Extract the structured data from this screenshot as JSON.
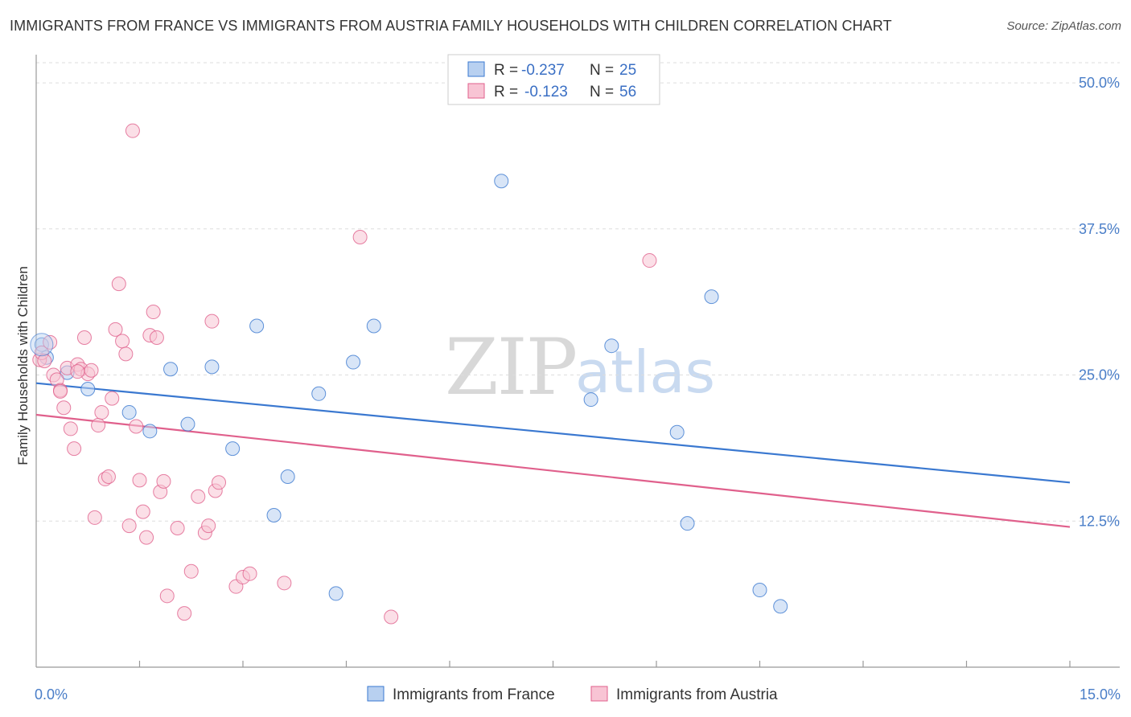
{
  "header": {
    "title": "IMMIGRANTS FROM FRANCE VS IMMIGRANTS FROM AUSTRIA FAMILY HOUSEHOLDS WITH CHILDREN CORRELATION CHART",
    "source": "Source: ZipAtlas.com"
  },
  "watermark": {
    "zip": "ZIP",
    "atlas": "atlas"
  },
  "colors": {
    "france": "#3a78d0",
    "france_fill": "#b8d0f0",
    "austria": "#e0608c",
    "austria_fill": "#f8c4d4",
    "grid": "#dddddd",
    "axis": "#999999",
    "tick_text": "#4a7ec8"
  },
  "legend": {
    "rows": [
      {
        "r_label": "R =",
        "r_value": "-0.237",
        "n_label": "N =",
        "n_value": "25"
      },
      {
        "r_label": "R =",
        "r_value": "-0.123",
        "n_label": "N =",
        "n_value": "56"
      }
    ]
  },
  "chart_data": {
    "type": "scatter",
    "title": "IMMIGRANTS FROM FRANCE VS IMMIGRANTS FROM AUSTRIA FAMILY HOUSEHOLDS WITH CHILDREN CORRELATION CHART",
    "xlabel": "",
    "ylabel": "Family Households with Children",
    "xlim": [
      0,
      15
    ],
    "ylim": [
      0,
      52
    ],
    "x_tick_labels": [
      {
        "value": 0,
        "label": "0.0%"
      },
      {
        "value": 15,
        "label": "15.0%"
      }
    ],
    "x_minor_ticks": [
      1.5,
      3,
      4.5,
      6,
      7.5,
      9,
      10.5,
      12,
      13.5,
      15
    ],
    "y_ticks": [
      {
        "value": 12.5,
        "label": "12.5%"
      },
      {
        "value": 25,
        "label": "25.0%"
      },
      {
        "value": 37.5,
        "label": "37.5%"
      },
      {
        "value": 50,
        "label": "50.0%"
      }
    ],
    "series": [
      {
        "name": "Immigrants from France",
        "r": -0.237,
        "n": 25,
        "trend": {
          "x0": 0,
          "y0": 24.3,
          "x1": 15,
          "y1": 15.8
        },
        "points": [
          [
            0.08,
            27.6
          ],
          [
            0.15,
            26.5
          ],
          [
            0.45,
            25.2
          ],
          [
            0.75,
            23.8
          ],
          [
            1.35,
            21.8
          ],
          [
            1.65,
            20.2
          ],
          [
            1.95,
            25.5
          ],
          [
            2.2,
            20.8
          ],
          [
            2.55,
            25.7
          ],
          [
            2.85,
            18.7
          ],
          [
            3.2,
            29.2
          ],
          [
            3.65,
            16.3
          ],
          [
            3.45,
            13.0
          ],
          [
            4.1,
            23.4
          ],
          [
            4.35,
            6.3
          ],
          [
            4.6,
            26.1
          ],
          [
            4.9,
            29.2
          ],
          [
            6.75,
            41.6
          ],
          [
            8.05,
            22.9
          ],
          [
            8.35,
            27.5
          ],
          [
            9.3,
            20.1
          ],
          [
            9.45,
            12.3
          ],
          [
            9.8,
            31.7
          ],
          [
            10.5,
            6.6
          ],
          [
            10.8,
            5.2
          ]
        ]
      },
      {
        "name": "Immigrants from Austria",
        "r": -0.123,
        "n": 56,
        "trend": {
          "x0": 0,
          "y0": 21.6,
          "x1": 15,
          "y1": 12.0
        },
        "points": [
          [
            0.05,
            26.3
          ],
          [
            0.08,
            26.9
          ],
          [
            0.12,
            26.2
          ],
          [
            0.2,
            27.8
          ],
          [
            0.25,
            25.0
          ],
          [
            0.3,
            24.6
          ],
          [
            0.35,
            23.7
          ],
          [
            0.4,
            22.2
          ],
          [
            0.45,
            25.6
          ],
          [
            0.5,
            20.4
          ],
          [
            0.55,
            18.7
          ],
          [
            0.6,
            25.9
          ],
          [
            0.65,
            25.5
          ],
          [
            0.7,
            28.2
          ],
          [
            0.75,
            25.1
          ],
          [
            0.8,
            25.4
          ],
          [
            0.85,
            12.8
          ],
          [
            0.9,
            20.7
          ],
          [
            0.95,
            21.8
          ],
          [
            1.0,
            16.1
          ],
          [
            1.05,
            16.3
          ],
          [
            1.1,
            23.0
          ],
          [
            1.15,
            28.9
          ],
          [
            1.2,
            32.8
          ],
          [
            1.25,
            27.9
          ],
          [
            1.3,
            26.8
          ],
          [
            1.35,
            12.1
          ],
          [
            1.4,
            45.9
          ],
          [
            1.45,
            20.6
          ],
          [
            1.5,
            16.0
          ],
          [
            1.55,
            13.3
          ],
          [
            1.6,
            11.1
          ],
          [
            1.65,
            28.4
          ],
          [
            1.7,
            30.4
          ],
          [
            1.75,
            28.2
          ],
          [
            1.8,
            15.0
          ],
          [
            1.85,
            15.9
          ],
          [
            1.9,
            6.1
          ],
          [
            2.05,
            11.9
          ],
          [
            2.15,
            4.6
          ],
          [
            2.25,
            8.2
          ],
          [
            2.35,
            14.6
          ],
          [
            2.45,
            11.5
          ],
          [
            2.5,
            12.1
          ],
          [
            2.55,
            29.6
          ],
          [
            2.6,
            15.1
          ],
          [
            2.65,
            15.8
          ],
          [
            2.9,
            6.9
          ],
          [
            3.0,
            7.7
          ],
          [
            3.1,
            8.0
          ],
          [
            3.6,
            7.2
          ],
          [
            4.7,
            36.8
          ],
          [
            5.15,
            4.3
          ],
          [
            8.9,
            34.8
          ],
          [
            0.35,
            23.6
          ],
          [
            0.6,
            25.3
          ]
        ]
      }
    ],
    "legend_position": "top-center",
    "bottom_legend": [
      "Immigrants from France",
      "Immigrants from Austria"
    ]
  }
}
